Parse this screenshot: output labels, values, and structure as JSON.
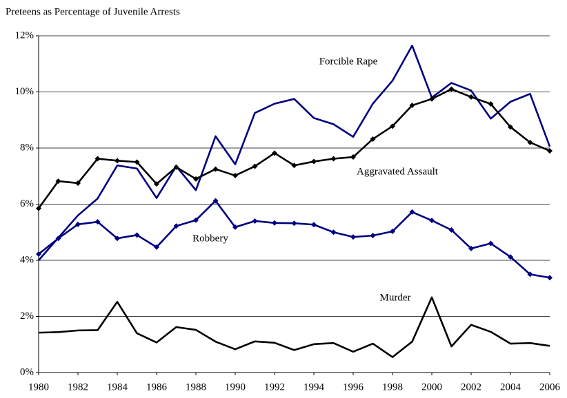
{
  "chart_data": {
    "type": "line",
    "title": "Preteens as Percentage of Juvenile Arrests",
    "x": [
      1980,
      1981,
      1982,
      1983,
      1984,
      1985,
      1986,
      1987,
      1988,
      1989,
      1990,
      1991,
      1992,
      1993,
      1994,
      1995,
      1996,
      1997,
      1998,
      1999,
      2000,
      2001,
      2002,
      2003,
      2004,
      2005,
      2006
    ],
    "xlim": [
      1980,
      2006
    ],
    "xticks": [
      1980,
      1982,
      1984,
      1986,
      1988,
      1990,
      1992,
      1994,
      1996,
      1998,
      2000,
      2002,
      2004,
      2006
    ],
    "ylim": [
      0,
      12
    ],
    "yticks": [
      {
        "value": 0,
        "label": "0%"
      },
      {
        "value": 2,
        "label": "2%"
      },
      {
        "value": 4,
        "label": "4%"
      },
      {
        "value": 6,
        "label": "6%"
      },
      {
        "value": 8,
        "label": "8%"
      },
      {
        "value": 10,
        "label": "10%"
      },
      {
        "value": 12,
        "label": "12%"
      }
    ],
    "grid": true,
    "series": [
      {
        "name": "Forcible Rape",
        "color": "#000080",
        "marker": "none",
        "values": [
          4.0,
          4.8,
          5.6,
          6.2,
          7.38,
          7.27,
          6.22,
          7.35,
          6.5,
          8.42,
          7.42,
          9.25,
          9.58,
          9.75,
          9.07,
          8.85,
          8.4,
          9.58,
          10.4,
          11.65,
          9.8,
          10.32,
          10.05,
          9.05,
          9.65,
          9.93,
          8.05
        ]
      },
      {
        "name": "Aggravated Assault",
        "color": "#000000",
        "marker": "diamond",
        "values": [
          5.85,
          6.82,
          6.75,
          7.62,
          7.55,
          7.5,
          6.72,
          7.32,
          6.9,
          7.25,
          7.02,
          7.35,
          7.82,
          7.38,
          7.52,
          7.62,
          7.68,
          8.32,
          8.78,
          9.52,
          9.75,
          10.1,
          9.82,
          9.57,
          8.75,
          8.2,
          7.9
        ]
      },
      {
        "name": "Robbery",
        "color": "#000080",
        "marker": "diamond",
        "values": [
          4.22,
          4.78,
          5.28,
          5.37,
          4.78,
          4.9,
          4.47,
          5.22,
          5.43,
          6.12,
          5.18,
          5.4,
          5.33,
          5.32,
          5.27,
          5.0,
          4.83,
          4.88,
          5.03,
          5.72,
          5.42,
          5.08,
          4.42,
          4.6,
          4.12,
          3.5,
          3.38
        ]
      },
      {
        "name": "Murder",
        "color": "#000000",
        "marker": "none",
        "values": [
          1.42,
          1.44,
          1.5,
          1.51,
          2.52,
          1.4,
          1.07,
          1.62,
          1.52,
          1.1,
          0.83,
          1.11,
          1.06,
          0.8,
          1.01,
          1.05,
          0.74,
          1.03,
          0.55,
          1.1,
          2.68,
          0.93,
          1.7,
          1.45,
          1.03,
          1.05,
          0.95
        ]
      }
    ]
  }
}
